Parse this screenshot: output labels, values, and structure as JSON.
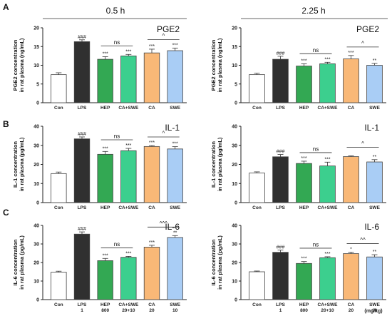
{
  "figure": {
    "time_left": "0.5 h",
    "time_right": "2.25 h",
    "row_letters": [
      "A",
      "B",
      "C"
    ],
    "units_label": "(mg/kg)"
  },
  "chart_data": [
    {
      "type": "bar",
      "panel": "A-left",
      "title": "PGE2",
      "ylabel": "PGE2 concentration in rat plasma (ng/mL)",
      "ylim": [
        0,
        20
      ],
      "yticks": [
        0,
        5,
        10,
        15,
        20
      ],
      "categories": [
        "Con",
        "LPS",
        "HEP",
        "CA+SWE",
        "CA",
        "SWE"
      ],
      "values": [
        7.5,
        16.3,
        11.6,
        12.5,
        13.3,
        13.9
      ],
      "errors": [
        0.5,
        0.5,
        0.7,
        0.4,
        1.0,
        0.7
      ],
      "annotations": [
        "",
        "###",
        "***",
        "***",
        "***",
        "***"
      ],
      "comparisons": [
        {
          "from": 2,
          "to": 3,
          "label": "ns"
        },
        {
          "from": 4,
          "to": 5,
          "label": "^"
        }
      ]
    },
    {
      "type": "bar",
      "panel": "A-right",
      "title": "PGE2",
      "ylabel": "PGE2 concentration in rat plasma (ng/mL)",
      "ylim": [
        0,
        20
      ],
      "yticks": [
        0,
        5,
        10,
        15,
        20
      ],
      "categories": [
        "Con",
        "LPS",
        "HEP",
        "CA+SWE",
        "CA",
        "SWE"
      ],
      "values": [
        7.5,
        11.6,
        9.8,
        10.4,
        11.7,
        10.0
      ],
      "errors": [
        0.4,
        0.8,
        0.6,
        0.4,
        0.9,
        0.5
      ],
      "annotations": [
        "",
        "###",
        "***",
        "***",
        "***",
        "**"
      ],
      "comparisons": [
        {
          "from": 2,
          "to": 3,
          "label": "ns"
        },
        {
          "from": 4,
          "to": 5,
          "label": "^"
        }
      ]
    },
    {
      "type": "bar",
      "panel": "B-left",
      "title": "IL-1",
      "ylabel": "IL-1 concentration in rat plasma (pg/mL)",
      "ylim": [
        0,
        40
      ],
      "yticks": [
        0,
        10,
        20,
        30,
        40
      ],
      "categories": [
        "Con",
        "LPS",
        "HEP",
        "CA+SWE",
        "CA",
        "SWE"
      ],
      "values": [
        15.2,
        33.4,
        25.3,
        27.2,
        29.4,
        28.1
      ],
      "errors": [
        0.8,
        1.0,
        1.5,
        1.2,
        0.5,
        1.2
      ],
      "annotations": [
        "",
        "###",
        "***",
        "***",
        "***",
        "***"
      ],
      "comparisons": [
        {
          "from": 2,
          "to": 3,
          "label": "ns"
        },
        {
          "from": 4,
          "to": 5,
          "label": "^"
        }
      ]
    },
    {
      "type": "bar",
      "panel": "B-right",
      "title": "IL-1",
      "ylabel": "IL-1 concentration in rat plasma (pg/mL)",
      "ylim": [
        0,
        40
      ],
      "yticks": [
        0,
        10,
        20,
        30,
        40
      ],
      "categories": [
        "Con",
        "LPS",
        "HEP",
        "CA+SWE",
        "CA",
        "SWE"
      ],
      "values": [
        15.5,
        24.0,
        20.5,
        19.2,
        24.1,
        21.3
      ],
      "errors": [
        0.6,
        1.2,
        1.2,
        2.0,
        0.4,
        1.2
      ],
      "annotations": [
        "",
        "###",
        "***",
        "***",
        "",
        "**"
      ],
      "comparisons": [
        {
          "from": 2,
          "to": 3,
          "label": "ns"
        },
        {
          "from": 4,
          "to": 5,
          "label": "^"
        }
      ]
    },
    {
      "type": "bar",
      "panel": "C-left",
      "title": "IL-6",
      "ylabel": "IL-6 concentration in rat plasma (pg/mL)",
      "ylim": [
        0,
        40
      ],
      "yticks": [
        0,
        10,
        20,
        30,
        40
      ],
      "categories": [
        "Con",
        "LPS",
        "HEP",
        "CA+SWE",
        "CA",
        "SWE"
      ],
      "xticklabels_line2": [
        "",
        "1",
        "800",
        "20+10",
        "20",
        "10"
      ],
      "values": [
        14.8,
        35.3,
        21.0,
        22.8,
        28.3,
        33.5
      ],
      "errors": [
        0.5,
        1.2,
        1.2,
        0.5,
        1.0,
        1.0
      ],
      "annotations": [
        "",
        "###",
        "***",
        "***",
        "***",
        "**"
      ],
      "comparisons": [
        {
          "from": 2,
          "to": 3,
          "label": "ns"
        },
        {
          "from": 4,
          "to": 5,
          "label": "^^^"
        }
      ]
    },
    {
      "type": "bar",
      "panel": "C-right",
      "title": "IL-6",
      "ylabel": "IL-6 concentration in rat plasma (pg/mL)",
      "ylim": [
        0,
        40
      ],
      "yticks": [
        0,
        10,
        20,
        30,
        40
      ],
      "categories": [
        "Con",
        "LPS",
        "HEP",
        "CA+SWE",
        "CA",
        "SWE"
      ],
      "xticklabels_line2": [
        "",
        "1",
        "800",
        "20+10",
        "20",
        "10"
      ],
      "values": [
        15.0,
        25.5,
        19.5,
        22.6,
        24.8,
        23.0
      ],
      "errors": [
        0.4,
        1.2,
        1.0,
        0.5,
        0.8,
        1.2
      ],
      "annotations": [
        "",
        "###",
        "***",
        "***",
        "*",
        "**"
      ],
      "comparisons": [
        {
          "from": 2,
          "to": 3,
          "label": "ns"
        },
        {
          "from": 4,
          "to": 5,
          "label": "^^"
        }
      ]
    }
  ],
  "colors": {
    "bars": [
      "#ffffff",
      "#303030",
      "#33a853",
      "#3ccf8e",
      "#f9b877",
      "#a9cdf5"
    ],
    "axis": "#222222"
  }
}
